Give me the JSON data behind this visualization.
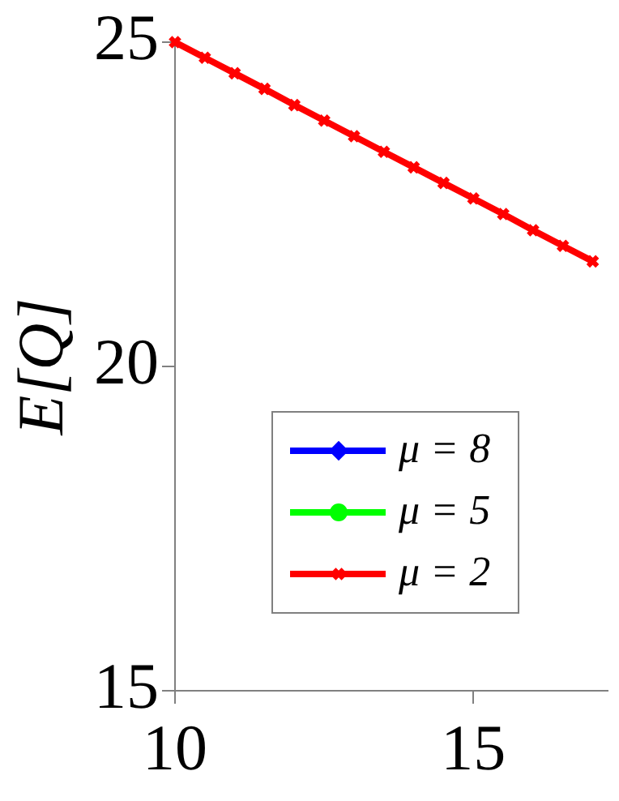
{
  "chart_data": {
    "type": "line",
    "ylabel": "E[Q]",
    "x": [
      10,
      10.5,
      11,
      11.5,
      12,
      12.5,
      13,
      13.5,
      14,
      14.5,
      15,
      15.5,
      16,
      16.5,
      17
    ],
    "xlim": [
      10,
      17.25
    ],
    "xticks": [
      10,
      15
    ],
    "ylim": [
      15,
      25
    ],
    "yticks": [
      15,
      20,
      25
    ],
    "legend": "bottom left",
    "series": [
      {
        "name": "μ = 8",
        "color": "#0000ff",
        "marker": "diamond",
        "values": [
          null,
          null,
          null,
          null,
          null,
          null,
          null,
          null,
          null,
          null,
          null,
          null,
          null,
          null,
          null
        ]
      },
      {
        "name": "μ = 5",
        "color": "#00ff00",
        "marker": "circle",
        "values": [
          null,
          null,
          null,
          null,
          null,
          null,
          null,
          null,
          null,
          null,
          null,
          null,
          null,
          null,
          null
        ]
      },
      {
        "name": "μ = 2",
        "color": "#ff0000",
        "marker": "cross",
        "values": [
          25,
          24.76,
          24.52,
          24.28,
          24.03,
          23.79,
          23.55,
          23.31,
          23.07,
          22.83,
          22.59,
          22.35,
          22.1,
          21.86,
          21.62
        ]
      }
    ]
  }
}
